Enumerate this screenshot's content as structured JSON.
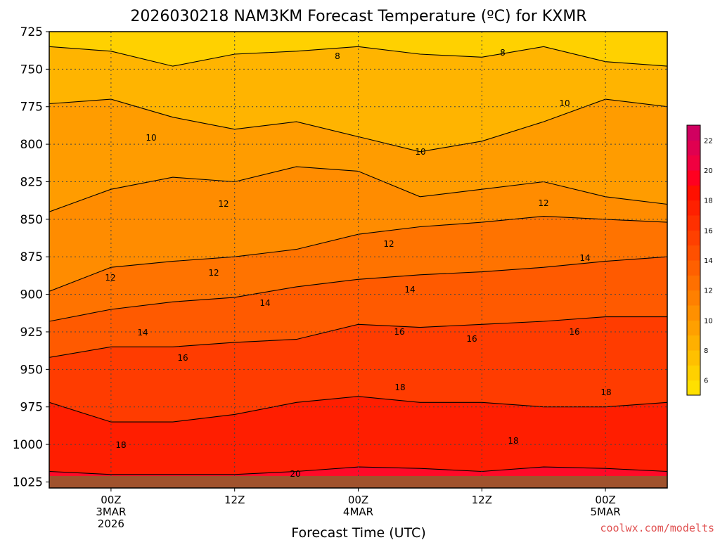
{
  "chart_data": {
    "type": "heatmap",
    "title": "2026030218 NAM3KM Forecast Temperature (ºC) for KXMR",
    "xlabel": "Forecast Time (UTC)",
    "ylabel": "",
    "y_ticks": [
      "725",
      "750",
      "775",
      "800",
      "825",
      "850",
      "875",
      "900",
      "925",
      "950",
      "975",
      "1000",
      "1025"
    ],
    "x_ticks": [
      {
        "hours": 6,
        "lines": [
          "00Z",
          "3MAR",
          "2026"
        ]
      },
      {
        "hours": 18,
        "lines": [
          "12Z"
        ]
      },
      {
        "hours": 30,
        "lines": [
          "00Z",
          "4MAR"
        ]
      },
      {
        "hours": 42,
        "lines": [
          "12Z"
        ]
      },
      {
        "hours": 54,
        "lines": [
          "00Z",
          "5MAR"
        ]
      }
    ],
    "xlim_hours": [
      0,
      60
    ],
    "ylim_hpa": [
      725,
      1029
    ],
    "ground_level_hpa": 1021,
    "grid": true,
    "colorbar": {
      "ticks": [
        "6",
        "8",
        "10",
        "12",
        "14",
        "16",
        "18",
        "20",
        "22"
      ],
      "levels": [
        5,
        6,
        7,
        8,
        9,
        10,
        11,
        12,
        13,
        14,
        15,
        16,
        17,
        18,
        19,
        20,
        21,
        22,
        23
      ],
      "colors": [
        "#ffe000",
        "#ffd000",
        "#ffc000",
        "#ffb000",
        "#ffa000",
        "#ff9000",
        "#ff8000",
        "#ff7000",
        "#ff6000",
        "#ff5000",
        "#ff4000",
        "#ff3000",
        "#ff2000",
        "#ff1000",
        "#ff0020",
        "#f00040",
        "#e00050",
        "#d00060"
      ]
    },
    "contour_lines": [
      {
        "label": "8",
        "pressure": [
          735,
          738,
          748,
          740,
          738,
          735,
          740,
          742,
          735,
          745,
          748
        ],
        "label_at": [
          [
            480,
            84
          ],
          [
            715,
            79
          ]
        ]
      },
      {
        "label": "10",
        "pressure": [
          773,
          770,
          782,
          790,
          785,
          795,
          805,
          798,
          785,
          770,
          775
        ],
        "label_at": [
          [
            215,
            200
          ],
          [
            598,
            220
          ],
          [
            803,
            151
          ]
        ]
      },
      {
        "label": "12",
        "pressure": [
          845,
          830,
          822,
          825,
          815,
          818,
          835,
          830,
          825,
          835,
          840
        ],
        "label_at": [
          [
            318,
            294
          ],
          [
            773,
            293
          ]
        ]
      },
      {
        "label": "12",
        "pressure": [
          898,
          882,
          878,
          875,
          870,
          860,
          855,
          852,
          848,
          850,
          852
        ],
        "label_at": [
          [
            157,
            399
          ],
          [
            304,
            392
          ],
          [
            553,
            351
          ]
        ]
      },
      {
        "label": "14",
        "pressure": [
          918,
          910,
          905,
          902,
          895,
          890,
          887,
          885,
          882,
          878,
          875
        ],
        "label_at": [
          [
            203,
            477
          ],
          [
            377,
            435
          ],
          [
            583,
            416
          ],
          [
            832,
            371
          ]
        ]
      },
      {
        "label": "16",
        "pressure": [
          942,
          935,
          935,
          932,
          930,
          920,
          922,
          920,
          918,
          915,
          915
        ],
        "label_at": [
          [
            260,
            513
          ],
          [
            568,
            476
          ],
          [
            671,
            486
          ],
          [
            817,
            476
          ]
        ]
      },
      {
        "label": "18",
        "pressure": [
          972,
          985,
          985,
          980,
          972,
          968,
          972,
          972,
          975,
          975,
          972
        ],
        "label_at": [
          [
            172,
            637
          ],
          [
            569,
            555
          ],
          [
            730,
            631
          ],
          [
            862,
            562
          ]
        ]
      },
      {
        "label": "20",
        "pressure": [
          1018,
          1020,
          1020,
          1020,
          1018,
          1015,
          1016,
          1018,
          1015,
          1016,
          1018
        ],
        "label_at": [
          [
            420,
            678
          ]
        ]
      }
    ],
    "credit": "coolwx.com/modelts"
  }
}
